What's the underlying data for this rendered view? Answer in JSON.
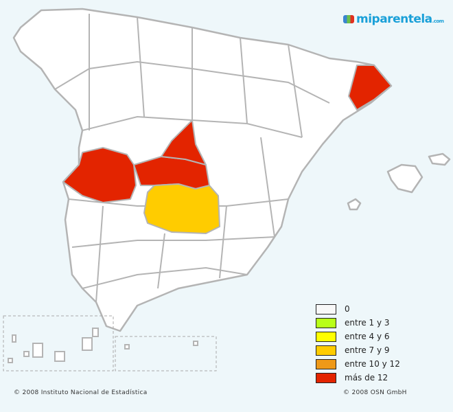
{
  "logo": {
    "text": "miparentela",
    "suffix": ".com"
  },
  "map": {
    "land_color": "#ffffff",
    "border_color": "#b4b4b4",
    "provinces": [
      {
        "name": "Girona",
        "category": "más de 12",
        "color": "#e32400"
      },
      {
        "name": "Salamanca",
        "category": "más de 12",
        "color": "#e32400"
      },
      {
        "name": "Ávila",
        "category": "más de 12",
        "color": "#e32400"
      },
      {
        "name": "Segovia",
        "category": "más de 12",
        "color": "#e32400"
      },
      {
        "name": "Toledo",
        "category": "entre 7 y 9",
        "color": "#ffcc00"
      }
    ]
  },
  "legend": [
    {
      "label": "0",
      "color": "#f8f8f8"
    },
    {
      "label": "entre 1 y 3",
      "color": "#b8ff18"
    },
    {
      "label": "entre 4 y 6",
      "color": "#ffff00"
    },
    {
      "label": "entre 7 y 9",
      "color": "#ffcc00"
    },
    {
      "label": "entre 10 y 12",
      "color": "#ee9918"
    },
    {
      "label": "más de 12",
      "color": "#e32400"
    }
  ],
  "footer": {
    "left": "© 2008 Instituto Nacional de Estadística",
    "right": "© 2008 OSN GmbH"
  }
}
